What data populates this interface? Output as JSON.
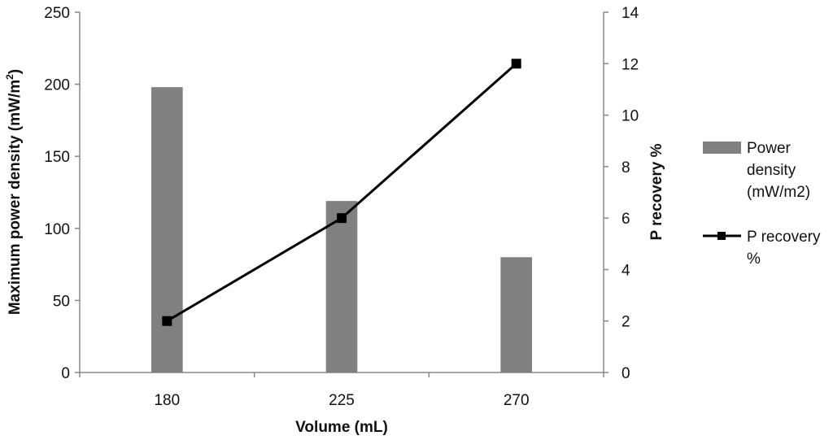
{
  "chart_data": {
    "type": "bar+line",
    "categories": [
      "180",
      "225",
      "270"
    ],
    "xlabel": "Volume (mL)",
    "ylabel": "Maximum power density (mW/m",
    "ylabel_sup": "2",
    "ylabel_suffix": ")",
    "y2label": "P recovery %",
    "ylim": [
      0,
      250
    ],
    "y2lim": [
      0,
      14
    ],
    "yticks": [
      "0",
      "50",
      "100",
      "150",
      "200",
      "250"
    ],
    "y2ticks": [
      "0",
      "2",
      "4",
      "6",
      "8",
      "10",
      "12",
      "14"
    ],
    "grid": false,
    "legend_position": "right",
    "series": [
      {
        "name_lines": [
          "Power",
          "density",
          "(mW/m2)"
        ],
        "type": "bar",
        "axis": "left",
        "color": "#808080",
        "values": [
          198,
          119,
          80
        ]
      },
      {
        "name_lines": [
          "P recovery",
          "%"
        ],
        "type": "line",
        "axis": "right",
        "color": "#000000",
        "marker": "square",
        "values": [
          2,
          6,
          12
        ]
      }
    ]
  }
}
